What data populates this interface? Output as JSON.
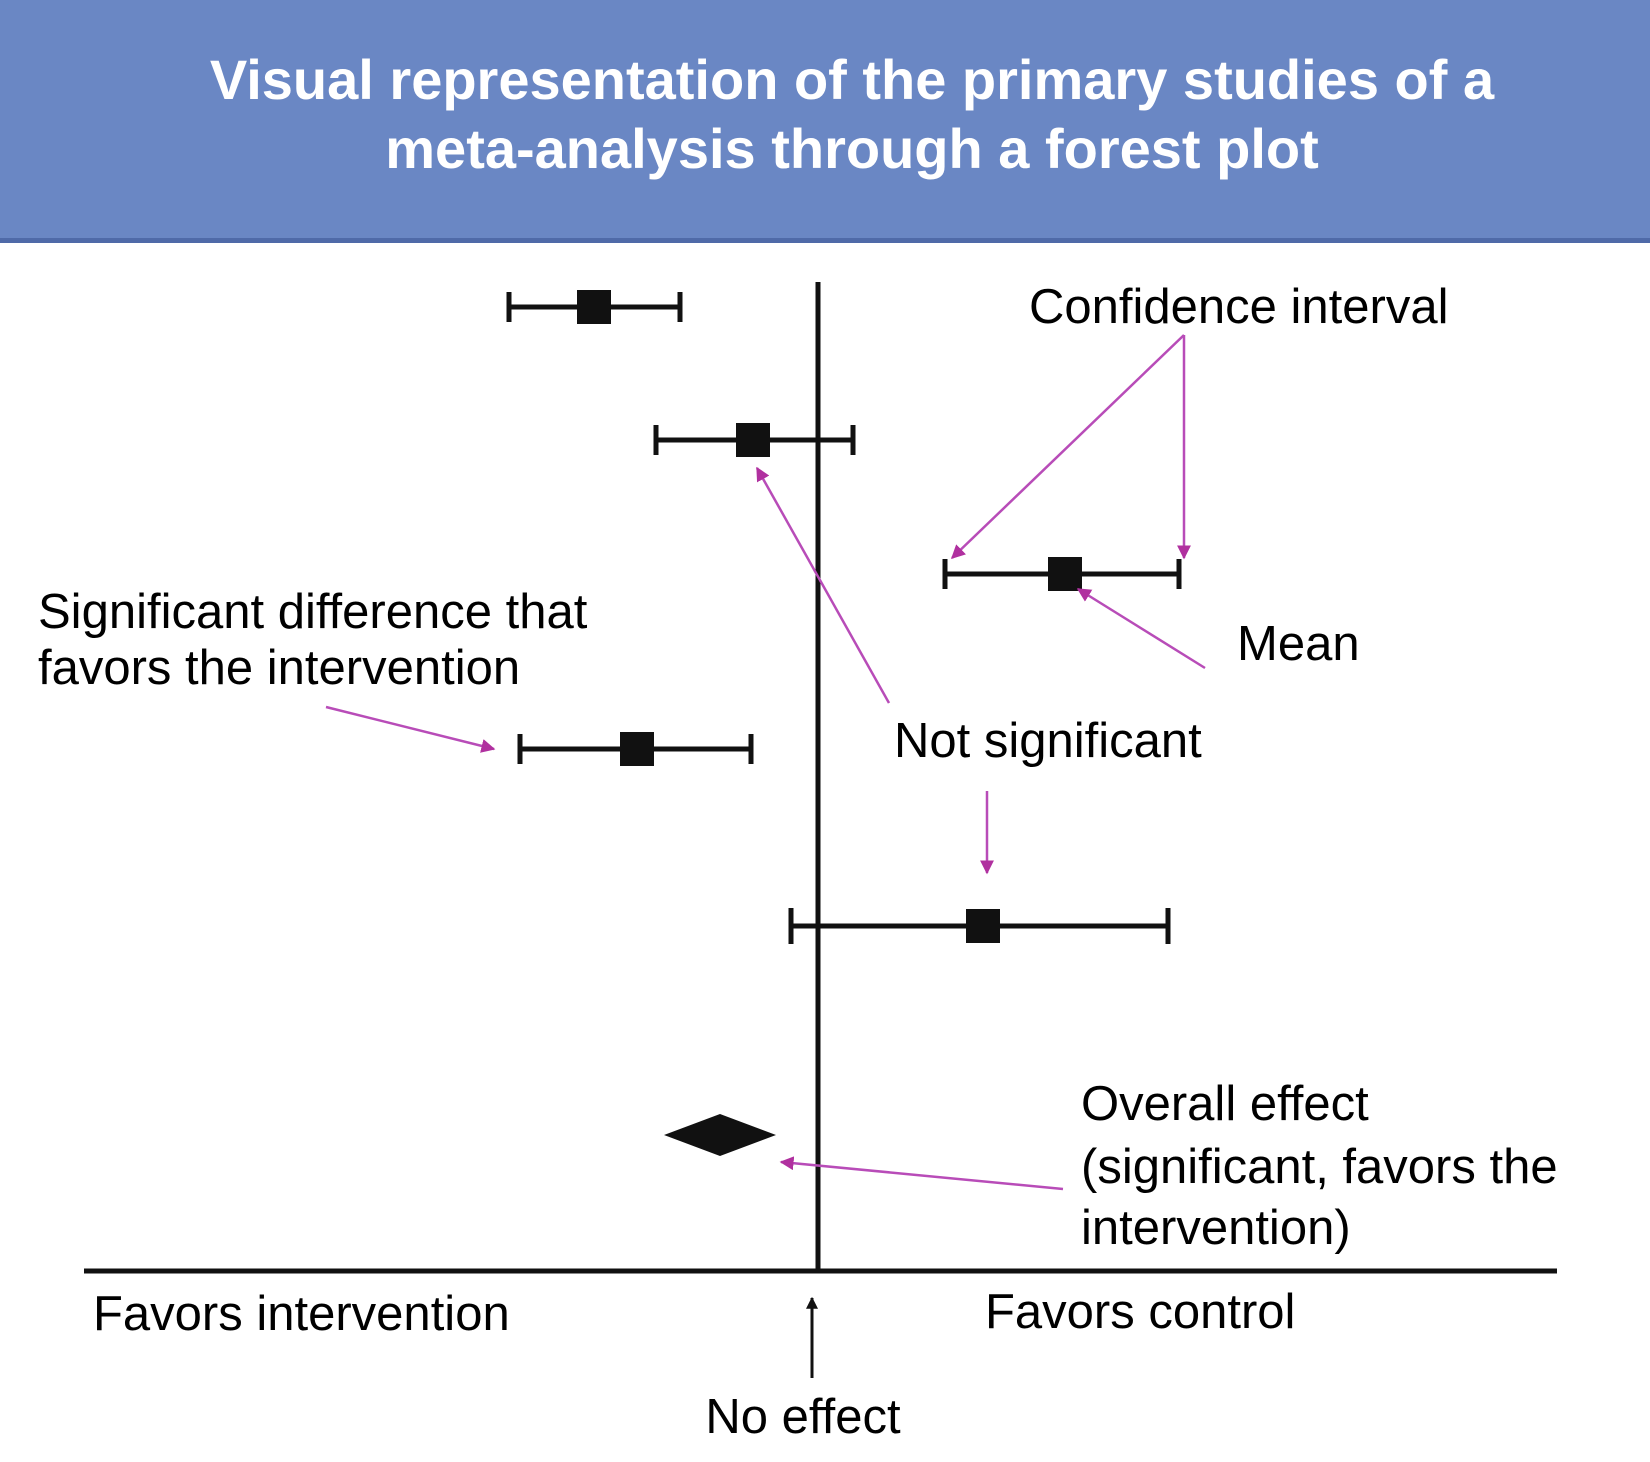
{
  "header": {
    "title": [
      "Visual representation of the primary studies of a",
      "meta-analysis through a forest plot"
    ]
  },
  "annotations": {
    "confidence_interval": "Confidence interval",
    "mean": "Mean",
    "significant": [
      "Significant difference that",
      "favors the intervention"
    ],
    "not_significant": "Not significant",
    "overall_effect": [
      "Overall effect",
      "(significant, favors the",
      "intervention)"
    ],
    "favors_intervention": "Favors intervention",
    "favors_control": "Favors control",
    "no_effect": "No effect"
  }
}
